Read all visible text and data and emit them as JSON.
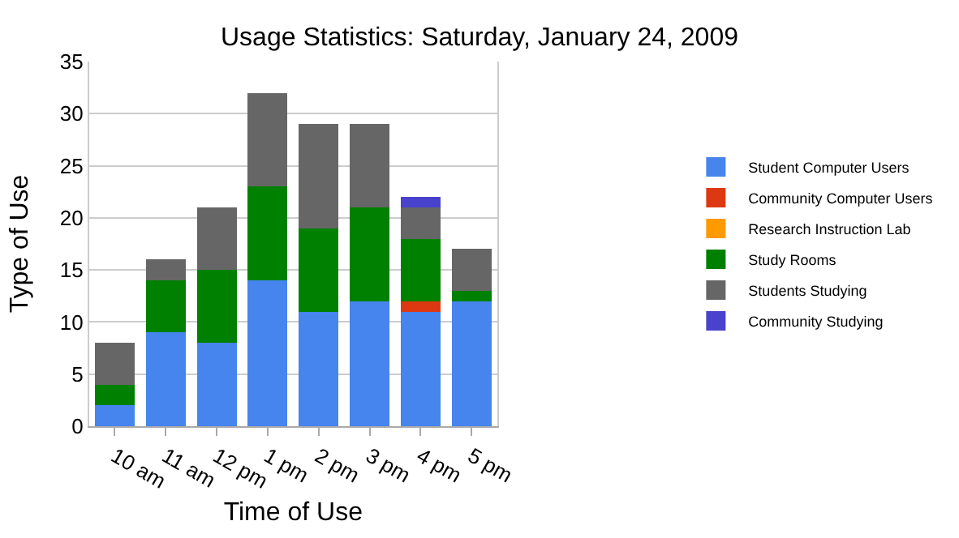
{
  "chart_data": {
    "type": "bar",
    "stacked": true,
    "title": "Usage Statistics: Saturday, January 24, 2009",
    "xlabel": "Time of Use",
    "ylabel": "Type of Use",
    "categories": [
      "10 am",
      "11 am",
      "12 pm",
      "1 pm",
      "2 pm",
      "3 pm",
      "4 pm",
      "5 pm"
    ],
    "series": [
      {
        "name": "Student Computer Users",
        "color": "#4684ee",
        "values": [
          2,
          9,
          8,
          14,
          11,
          12,
          11,
          12
        ]
      },
      {
        "name": "Community Computer Users",
        "color": "#dc3912",
        "values": [
          0,
          0,
          0,
          0,
          0,
          0,
          1,
          0
        ]
      },
      {
        "name": "Research Instruction Lab",
        "color": "#ff9900",
        "values": [
          0,
          0,
          0,
          0,
          0,
          0,
          0,
          0
        ]
      },
      {
        "name": "Study Rooms",
        "color": "#008000",
        "values": [
          2,
          5,
          7,
          9,
          8,
          9,
          6,
          1
        ]
      },
      {
        "name": "Students Studying",
        "color": "#666666",
        "values": [
          4,
          2,
          6,
          9,
          10,
          8,
          3,
          4
        ]
      },
      {
        "name": "Community Studying",
        "color": "#4942cc",
        "values": [
          0,
          0,
          0,
          0,
          0,
          0,
          1,
          0
        ]
      }
    ],
    "ylim": [
      0,
      35
    ],
    "yticks": [
      0,
      5,
      10,
      15,
      20,
      25,
      30,
      35
    ],
    "grid": "y",
    "legend": "right"
  }
}
